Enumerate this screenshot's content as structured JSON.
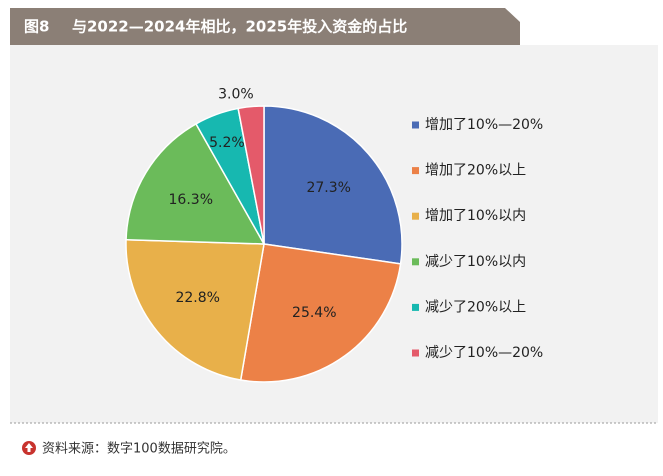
{
  "chart_data": {
    "type": "pie",
    "figure_label": "图8",
    "title": "与2022—2024年相比，2025年投入资金的占比",
    "categories": [
      "增加了10%—20%",
      "增加了20%以上",
      "增加了10%以内",
      "减少了10%以内",
      "减少了20%以上",
      "减少了10%—20%"
    ],
    "values": [
      27.3,
      25.4,
      22.8,
      16.3,
      5.2,
      3.0
    ],
    "value_labels": [
      "27.3%",
      "25.4%",
      "22.8%",
      "16.3%",
      "5.2%",
      "3.0%"
    ],
    "colors": [
      "#4a6bb5",
      "#ec8147",
      "#e8b04a",
      "#6bbb5a",
      "#17b8b0",
      "#e45a6a"
    ],
    "legend": "right",
    "source": "资料来源：数字100数据研究院。"
  }
}
